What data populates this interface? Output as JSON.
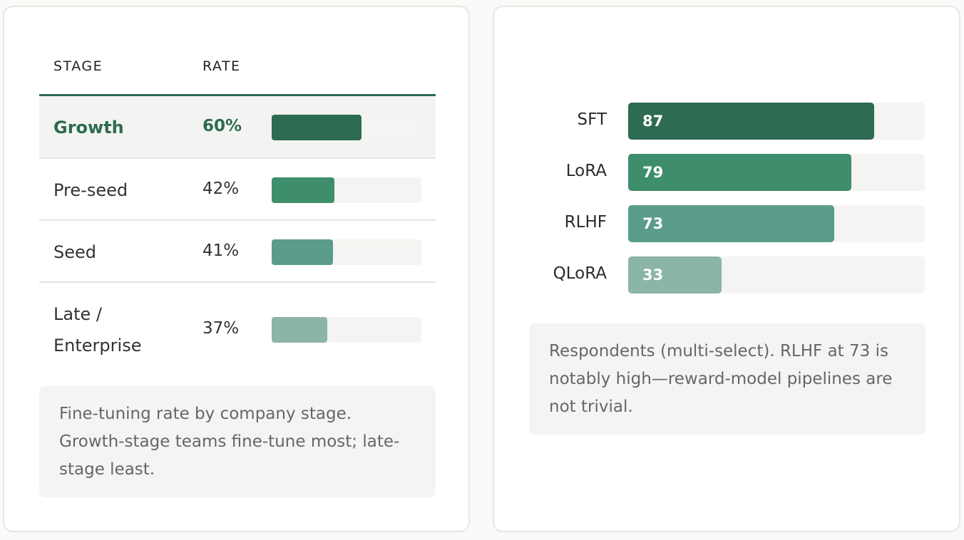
{
  "table": {
    "headers": {
      "stage": "STAGE",
      "rate": "RATE"
    },
    "rows": [
      {
        "stage": "Growth",
        "rate_label": "60%",
        "rate": 60,
        "color": "#2d6b52",
        "highlight": true
      },
      {
        "stage": "Pre-seed",
        "rate_label": "42%",
        "rate": 42,
        "color": "#3e8e6b",
        "highlight": false
      },
      {
        "stage": "Seed",
        "rate_label": "41%",
        "rate": 41,
        "color": "#5a9c8a",
        "highlight": false
      },
      {
        "stage": "Late / Enterprise",
        "rate_label": "37%",
        "rate": 37,
        "color": "#8bb5a6",
        "highlight": false
      }
    ],
    "scale_max": 100,
    "note": "Fine-tuning rate by company stage. Growth-stage teams fine-tune most; late-stage least."
  },
  "chart_data": {
    "type": "bar",
    "orientation": "horizontal",
    "categories": [
      "SFT",
      "LoRA",
      "RLHF",
      "QLoRA"
    ],
    "values": [
      87,
      79,
      73,
      33
    ],
    "colors": [
      "#2d6b52",
      "#3e8e6b",
      "#5a9c8a",
      "#8bb5a6"
    ],
    "xlim": [
      0,
      105
    ],
    "title": "",
    "xlabel": "",
    "ylabel": "",
    "note": "Respondents (multi-select). RLHF at 73 is notably high—reward-model pipelines are not trivial."
  }
}
